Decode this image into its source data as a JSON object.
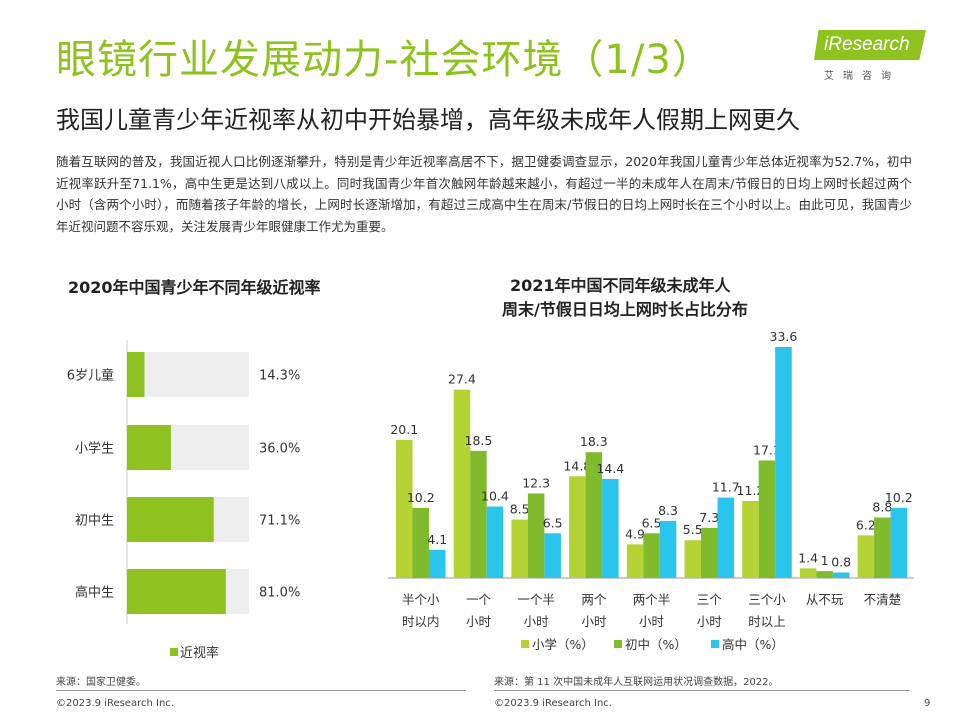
{
  "header": {
    "title": "眼镜行业发展动力-社会环境（1/3）",
    "subtitle": "我国儿童青少年近视率从初中开始暴增，高年级未成年人假期上网更久",
    "intro": "随着互联网的普及，我国近视人口比例逐渐攀升，特别是青少年近视率高居不下，据卫健委调查显示，2020年我国儿童青少年总体近视率为52.7%，初中近视率跃升至71.1%，高中生更是达到八成以上。同时我国青少年首次触网年龄越来越小，有超过一半的未成年人在周末/节假日的日均上网时长超过两个小时（含两个小时），而随着孩子年龄的增长，上网时长逐渐增加，有超过三成高中生在周末/节假日的日均上网时长在三个小时以上。由此可见，我国青少年近视问题不容乐观，关注发展青少年眼健康工作尤为重要。"
  },
  "logo": {
    "text": "iResearch",
    "sub": "艾瑞咨询"
  },
  "colors": {
    "green": "#8dc21f",
    "lightgreen": "#b5d334",
    "midgreen": "#7fbb2d",
    "cyan": "#29c5ec",
    "track": "#eeeeee"
  },
  "chart_data": [
    {
      "type": "bar",
      "orientation": "horizontal",
      "title": "2020年中国青少年不同年级近视率",
      "categories": [
        "6岁儿童",
        "小学生",
        "初中生",
        "高中生"
      ],
      "values": [
        14.3,
        36.0,
        71.1,
        81.0
      ],
      "value_labels": [
        "14.3%",
        "36.0%",
        "71.1%",
        "81.0%"
      ],
      "xlim": [
        0,
        100
      ],
      "series": [
        {
          "name": "近视率",
          "values": [
            14.3,
            36.0,
            71.1,
            81.0
          ]
        }
      ],
      "legend": "bottom"
    },
    {
      "type": "bar",
      "title_line1": "2021年中国不同年级未成年人",
      "title_line2": "周末/节假日日均上网时长占比分布",
      "categories": [
        [
          "半个小",
          "时以内"
        ],
        [
          "一个",
          "小时"
        ],
        [
          "一个半",
          "小时"
        ],
        [
          "两个",
          "小时"
        ],
        [
          "两个半",
          "小时"
        ],
        [
          "三个",
          "小时"
        ],
        [
          "三个小",
          "时以上"
        ],
        [
          "从不玩",
          ""
        ],
        [
          "不清楚",
          ""
        ]
      ],
      "series": [
        {
          "name": "小学（%）",
          "values": [
            20.1,
            27.4,
            8.5,
            14.8,
            4.9,
            5.5,
            11.2,
            1.4,
            6.2
          ]
        },
        {
          "name": "初中（%）",
          "values": [
            10.2,
            18.5,
            12.3,
            18.3,
            6.5,
            7.3,
            17.1,
            1.0,
            8.8
          ]
        },
        {
          "name": "高中（%）",
          "values": [
            4.1,
            10.4,
            6.5,
            14.4,
            8.3,
            11.7,
            33.6,
            0.8,
            10.2
          ]
        }
      ],
      "ylim": [
        0,
        33.6
      ],
      "legend": "bottom"
    }
  ],
  "footer": {
    "source_left": "来源：国家卫健委。",
    "source_right": "来源：第 11 次中国未成年人互联网运用状况调查数据，2022。",
    "copyright": "©2023.9 iResearch Inc.",
    "page": "9"
  }
}
